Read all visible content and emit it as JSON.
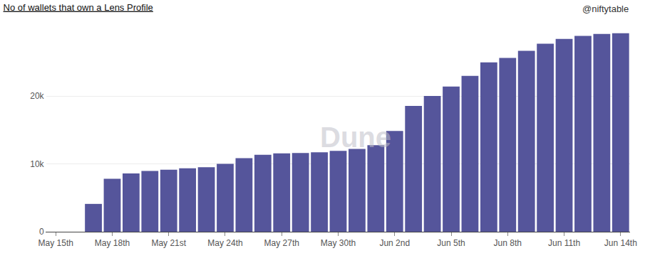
{
  "chart_data": {
    "type": "bar",
    "title": "No of wallets that own a Lens Profile",
    "subtitle": "@niftytable",
    "annotations": [
      "Dune"
    ],
    "categories": [
      "May 15th",
      null,
      null,
      "May 18th",
      null,
      null,
      "May 21st",
      null,
      null,
      "May 24th",
      null,
      null,
      "May 27th",
      null,
      null,
      "May 30th",
      null,
      null,
      "Jun 2nd",
      null,
      null,
      "Jun 5th",
      null,
      null,
      "Jun 8th",
      null,
      null,
      "Jun 11th",
      null,
      null,
      "Jun 14th"
    ],
    "values": [
      0,
      0,
      4100,
      7800,
      8600,
      8950,
      9150,
      9350,
      9500,
      10000,
      10850,
      11350,
      11550,
      11600,
      11700,
      11900,
      12200,
      12750,
      14850,
      18550,
      20000,
      21400,
      22950,
      24950,
      25600,
      26650,
      27700,
      28400,
      28850,
      29150,
      29250
    ],
    "color": "#55559b",
    "ylim": [
      0,
      31000
    ],
    "yticks": [
      0,
      {
        "value": 10000,
        "label": "10k"
      },
      {
        "value": 20000,
        "label": "20k"
      }
    ],
    "grid": true
  }
}
